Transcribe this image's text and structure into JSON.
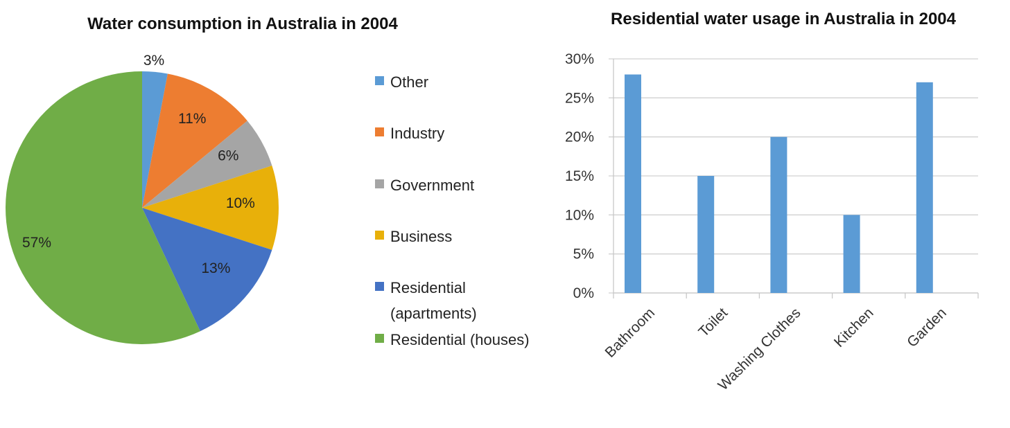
{
  "chart_data": [
    {
      "type": "pie",
      "title": "Water consumption in Australia in 2004",
      "categories": [
        "Other",
        "Industry",
        "Government",
        "Business",
        "Residential (apartments)",
        "Residential (houses)"
      ],
      "legend_lines": [
        [
          "Other"
        ],
        [
          "Industry"
        ],
        [
          "Government"
        ],
        [
          "Business"
        ],
        [
          "Residential",
          "(apartments)"
        ],
        [
          "Residential (houses)"
        ]
      ],
      "values": [
        3,
        11,
        6,
        10,
        13,
        57
      ],
      "data_labels": [
        "3%",
        "11%",
        "6%",
        "10%",
        "13%",
        "57%"
      ],
      "colors": [
        "#5b9bd5",
        "#ed7d31",
        "#a5a5a5",
        "#e8b00a",
        "#4472c4",
        "#70ad47"
      ],
      "legend": "right"
    },
    {
      "type": "bar",
      "title": "Residential water usage in Australia in 2004",
      "categories": [
        "Bathroom",
        "Toilet",
        "Washing Clothes",
        "Kitchen",
        "Garden"
      ],
      "values": [
        28,
        15,
        20,
        10,
        27
      ],
      "ylim": [
        0,
        30
      ],
      "yticks": [
        "0%",
        "5%",
        "10%",
        "15%",
        "20%",
        "25%",
        "30%"
      ],
      "grid": true,
      "color": "#5b9bd5"
    }
  ]
}
